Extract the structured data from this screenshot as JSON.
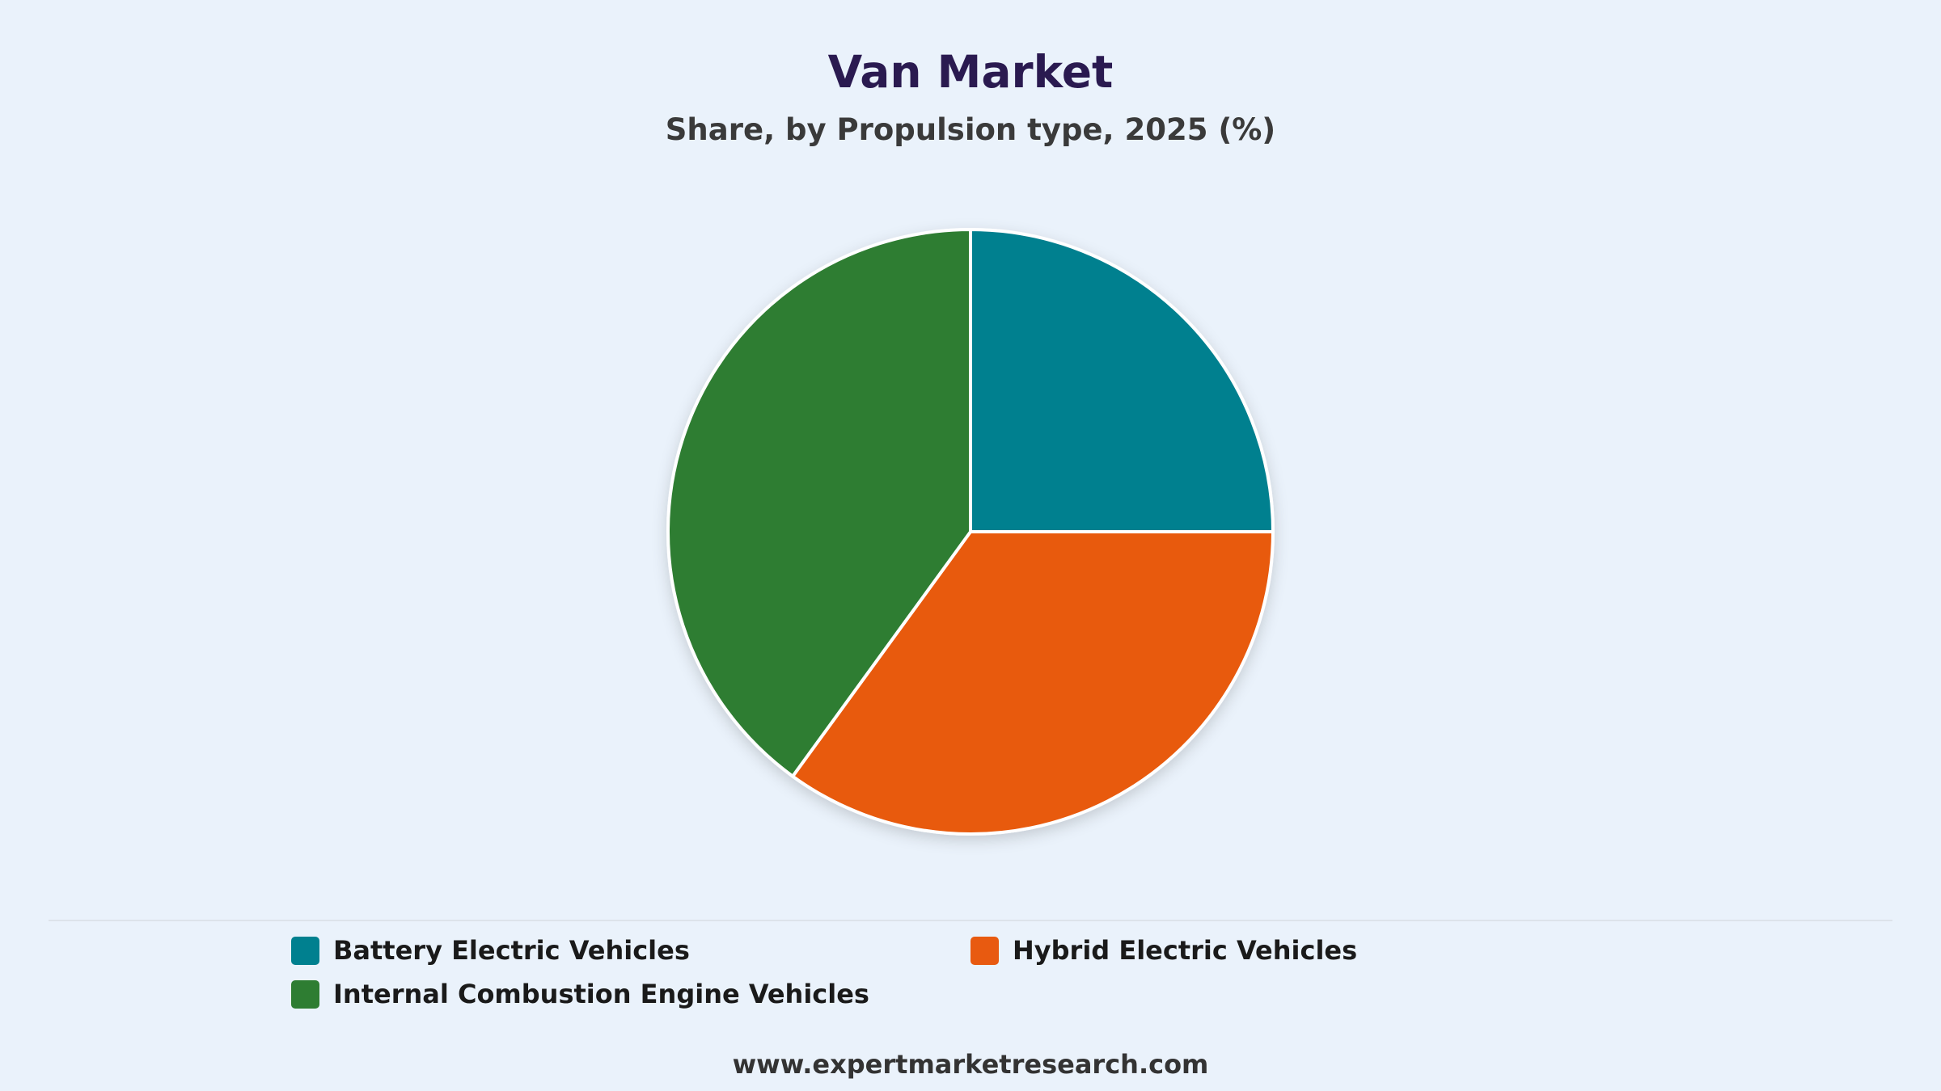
{
  "chart_data": {
    "type": "pie",
    "title": "Van Market",
    "subtitle": "Share, by Propulsion type, 2025 (%)",
    "categories": [
      "Battery Electric Vehicles",
      "Hybrid Electric Vehicles",
      "Internal Combustion Engine Vehicles"
    ],
    "values": [
      25,
      35,
      40
    ],
    "colors": [
      "#00808f",
      "#e85a10",
      "#2e7d32"
    ],
    "legend_position": "bottom"
  },
  "footer": {
    "source": "www.expertmarketresearch.com"
  }
}
